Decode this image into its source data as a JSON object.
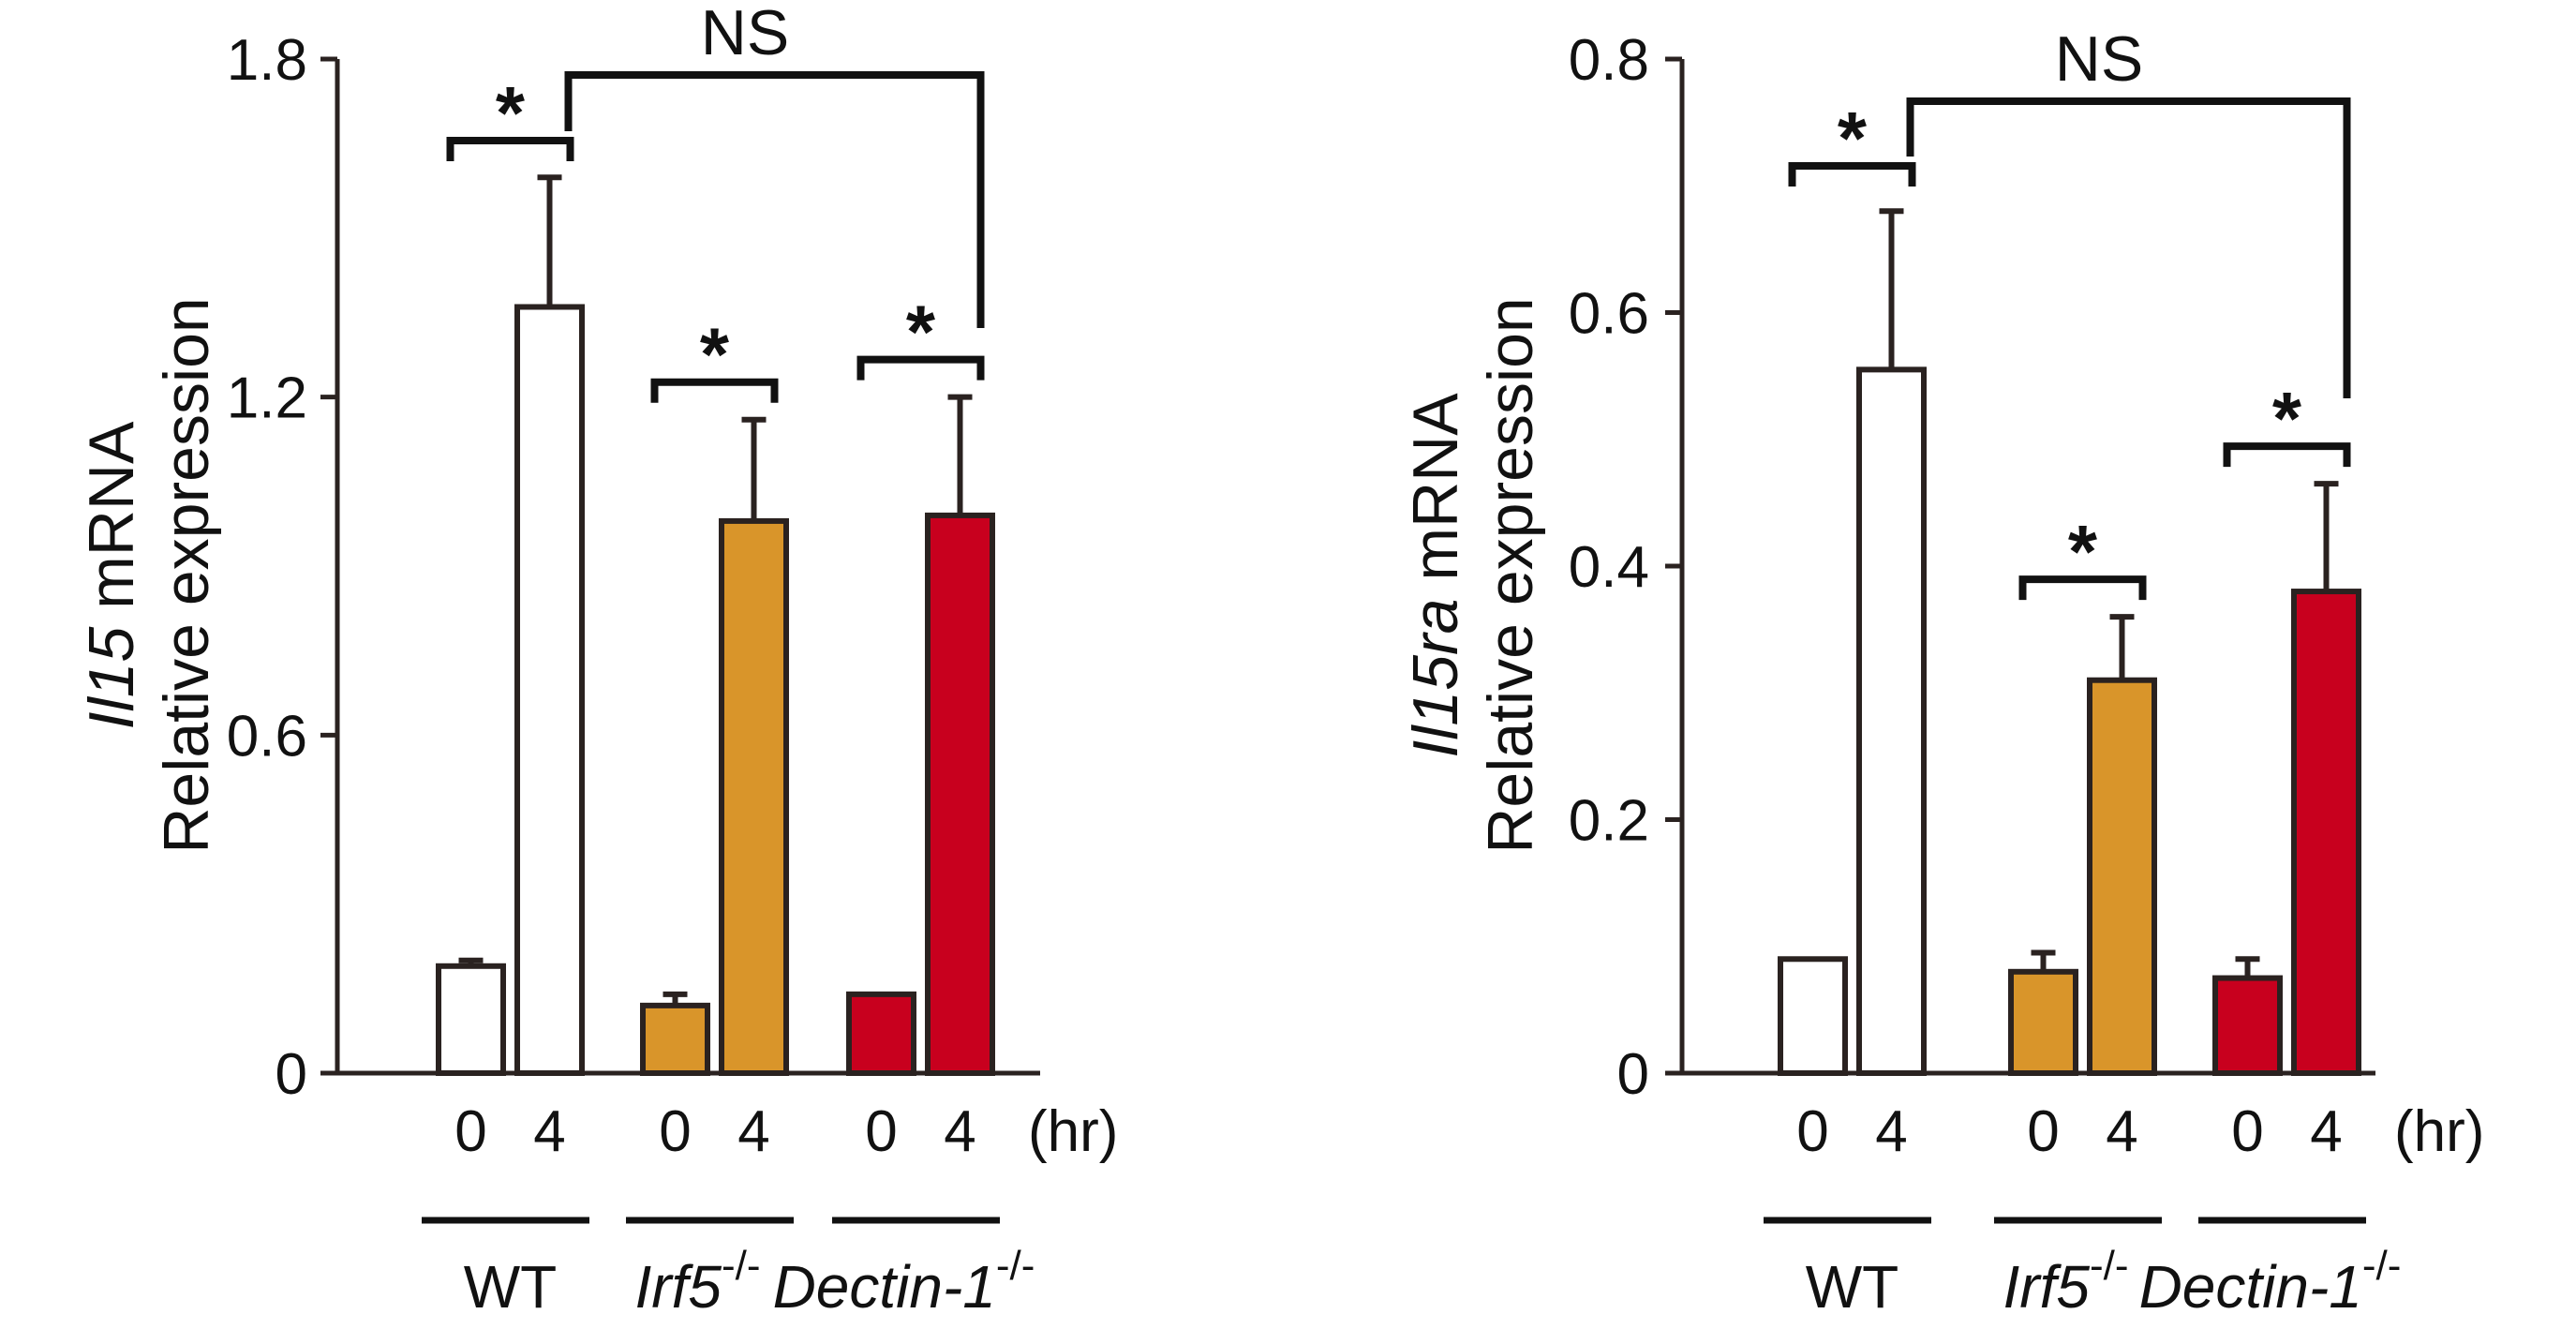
{
  "chart_data": [
    {
      "type": "bar",
      "ylabel_gene": "Il15",
      "ylabel_suffix": " mRNA",
      "ylabel_line2": "Relative expression",
      "ylim": [
        0,
        1.8
      ],
      "yticks": [
        0,
        0.6,
        1.2,
        1.8
      ],
      "ytick_labels": [
        "0",
        "0.6",
        "1.2",
        "1.8"
      ],
      "time_labels": [
        "0",
        "4"
      ],
      "time_unit": "(hr)",
      "groups": [
        {
          "label": "WT",
          "superscript": "",
          "italic": false,
          "color": "#ffffff",
          "values": [
            0.19,
            1.36
          ],
          "errors": [
            0.01,
            0.23
          ]
        },
        {
          "label": "Irf5",
          "superscript": "-/-",
          "italic": true,
          "color": "#d9952a",
          "values": [
            0.12,
            0.98
          ],
          "errors": [
            0.02,
            0.18
          ]
        },
        {
          "label": "Dectin-1",
          "superscript": "-/-",
          "italic": true,
          "color": "#c8001e",
          "values": [
            0.14,
            0.99
          ],
          "errors": [
            0.0,
            0.21
          ]
        }
      ],
      "significance": [
        {
          "group": 0,
          "label": "*"
        },
        {
          "group": 1,
          "label": "*"
        },
        {
          "group": 2,
          "label": "*"
        }
      ],
      "comparison": {
        "label": "NS"
      }
    },
    {
      "type": "bar",
      "ylabel_gene": "Il15ra",
      "ylabel_suffix": " mRNA",
      "ylabel_line2": "Relative expression",
      "ylim": [
        0,
        0.8
      ],
      "yticks": [
        0,
        0.2,
        0.4,
        0.6,
        0.8
      ],
      "ytick_labels": [
        "0",
        "0.2",
        "0.4",
        "0.6",
        "0.8"
      ],
      "time_labels": [
        "0",
        "4"
      ],
      "time_unit": "(hr)",
      "groups": [
        {
          "label": "WT",
          "superscript": "",
          "italic": false,
          "color": "#ffffff",
          "values": [
            0.09,
            0.555
          ],
          "errors": [
            0.0,
            0.125
          ]
        },
        {
          "label": "Irf5",
          "superscript": "-/-",
          "italic": true,
          "color": "#d9952a",
          "values": [
            0.08,
            0.31
          ],
          "errors": [
            0.015,
            0.05
          ]
        },
        {
          "label": "Dectin-1",
          "superscript": "-/-",
          "italic": true,
          "color": "#c8001e",
          "values": [
            0.075,
            0.38
          ],
          "errors": [
            0.015,
            0.085
          ]
        }
      ],
      "significance": [
        {
          "group": 0,
          "label": "*"
        },
        {
          "group": 1,
          "label": "*"
        },
        {
          "group": 2,
          "label": "*"
        }
      ],
      "comparison": {
        "label": "NS"
      }
    }
  ]
}
